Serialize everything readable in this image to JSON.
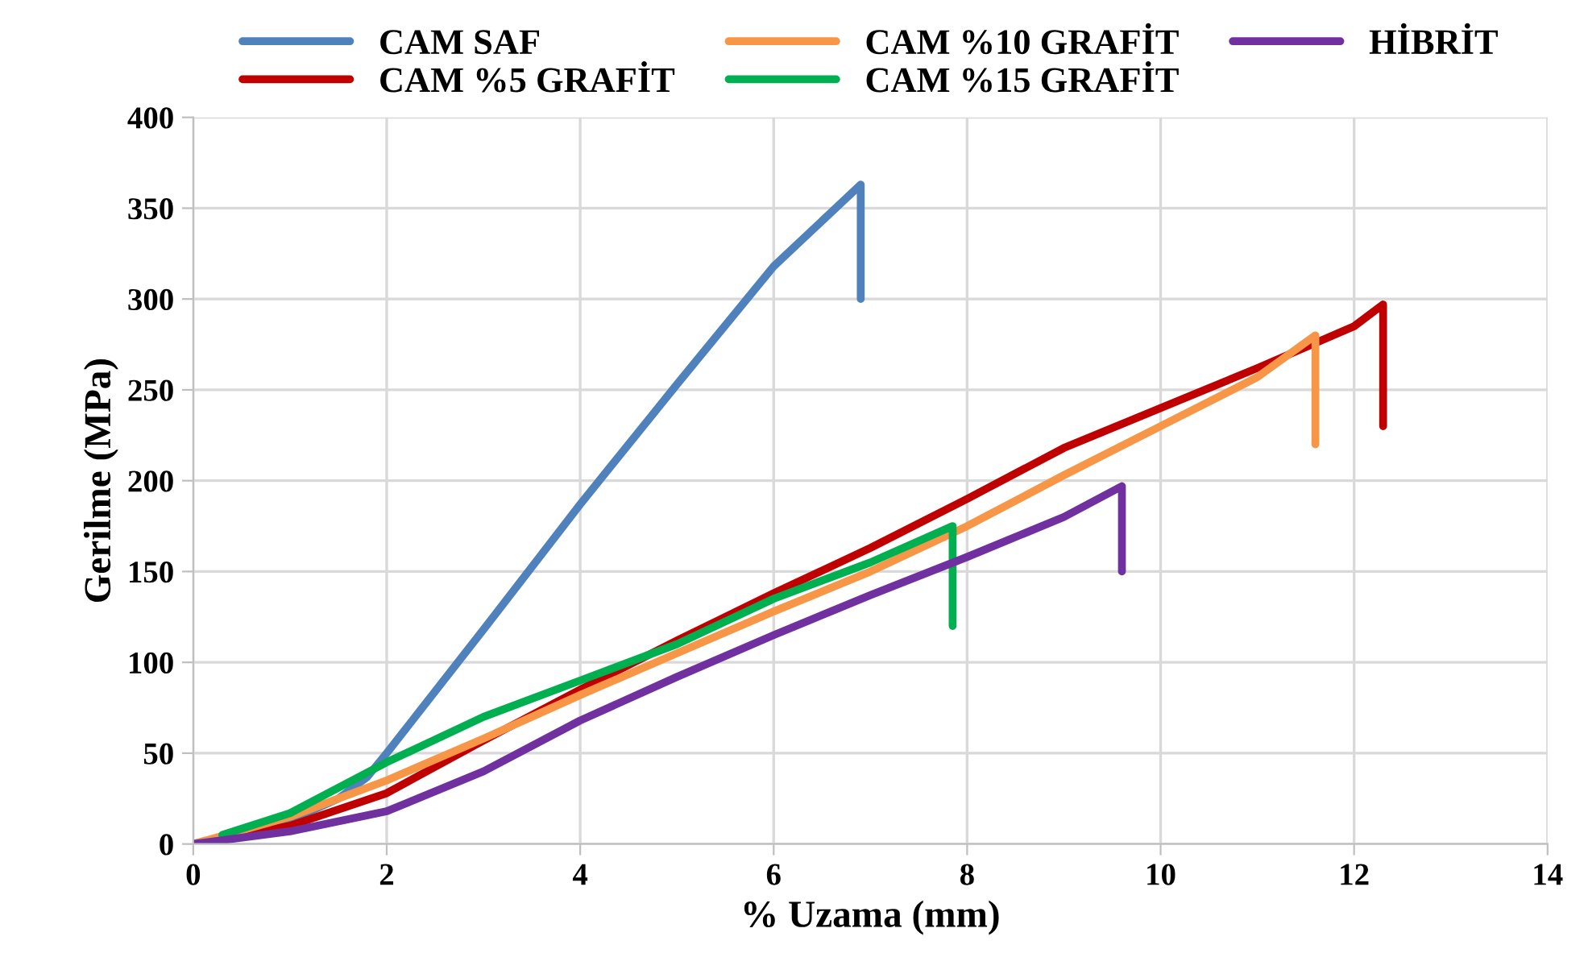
{
  "chart_data": {
    "type": "line",
    "xlabel": "% Uzama (mm)",
    "ylabel": "Gerilme (MPa)",
    "xlim": [
      0,
      14
    ],
    "xticks": [
      0,
      2,
      4,
      6,
      8,
      10,
      12,
      14
    ],
    "ylim": [
      0,
      400
    ],
    "yticks": [
      0,
      50,
      100,
      150,
      200,
      250,
      300,
      350,
      400
    ],
    "grid": true,
    "legend": "top",
    "marker": "none",
    "line_style": "solid",
    "series": [
      {
        "name": "CAM SAF",
        "color": "#4f81bd",
        "x": [
          0,
          0.5,
          1,
          1.5,
          1.8,
          2,
          3,
          4,
          5,
          6,
          6.9,
          6.9
        ],
        "values": [
          0,
          5,
          13,
          25,
          37,
          50,
          118,
          187,
          253,
          318,
          363,
          300
        ]
      },
      {
        "name": "CAM %5 GRAFİT",
        "color": "#c00000",
        "x": [
          0,
          1,
          2,
          3,
          4,
          5,
          6,
          7,
          8,
          9,
          10,
          11,
          12,
          12.3,
          12.3
        ],
        "values": [
          0,
          10,
          28,
          57,
          85,
          112,
          138,
          163,
          190,
          218,
          240,
          262,
          285,
          297,
          230
        ]
      },
      {
        "name": "CAM %10 GRAFİT",
        "color": "#f79646",
        "x": [
          0,
          1,
          2,
          3,
          4,
          5,
          6,
          7,
          8,
          9,
          10,
          11,
          11.6,
          11.6
        ],
        "values": [
          0,
          15,
          35,
          58,
          82,
          105,
          128,
          150,
          175,
          203,
          230,
          257,
          280,
          220
        ]
      },
      {
        "name": "CAM %15 GRAFİT",
        "color": "#00b050",
        "x": [
          0.3,
          1,
          2,
          3,
          4,
          5,
          6,
          7,
          7.85,
          7.85
        ],
        "values": [
          5,
          17,
          45,
          70,
          90,
          110,
          135,
          155,
          175,
          120
        ]
      },
      {
        "name": "HİBRİT",
        "color": "#7030a0",
        "x": [
          0,
          1,
          2,
          3,
          4,
          5,
          6,
          7,
          8,
          9,
          9.6,
          9.6
        ],
        "values": [
          0,
          7,
          18,
          40,
          68,
          92,
          115,
          137,
          158,
          180,
          197,
          150
        ]
      }
    ]
  }
}
